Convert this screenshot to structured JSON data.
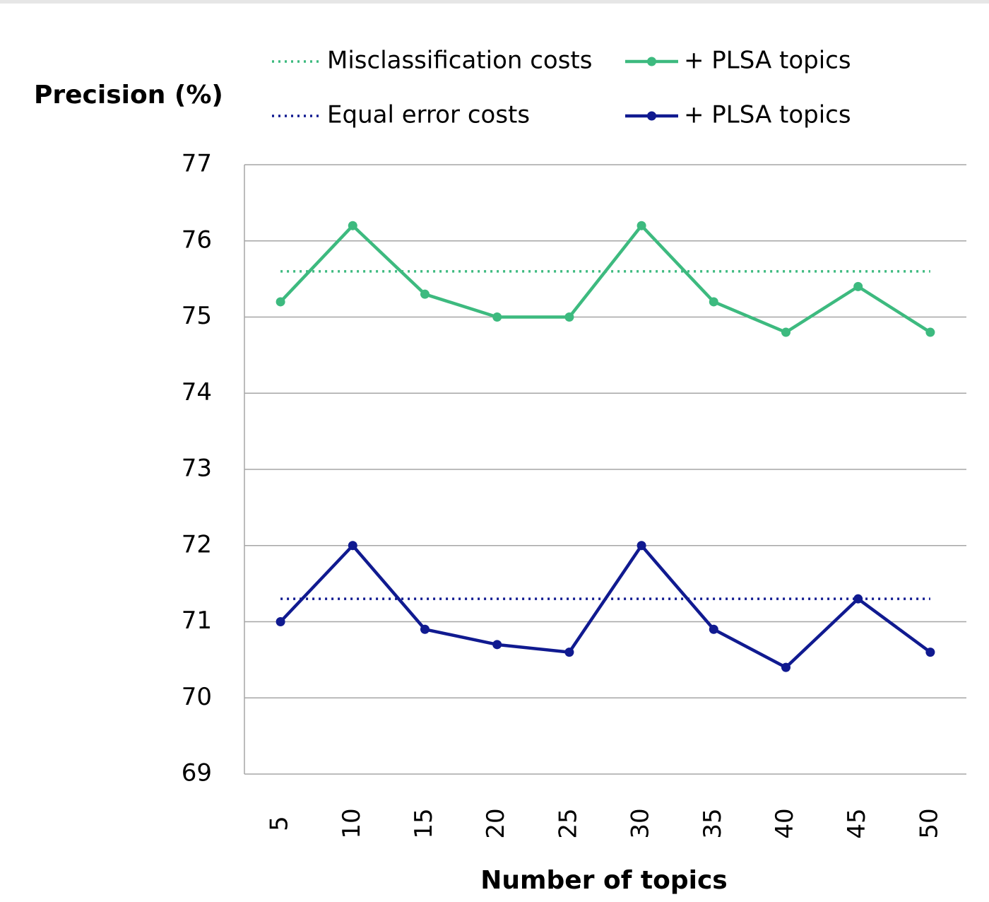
{
  "chart_data": {
    "type": "line",
    "y_label": "Precision (%)",
    "x_label": "Number of topics",
    "categories": [
      "5",
      "10",
      "15",
      "20",
      "25",
      "30",
      "35",
      "40",
      "45",
      "50"
    ],
    "series": [
      {
        "name": "Misclassification costs",
        "color": "#3dba7f",
        "dash": "dotted",
        "marker": false,
        "values": [
          75.6,
          75.6,
          75.6,
          75.6,
          75.6,
          75.6,
          75.6,
          75.6,
          75.6,
          75.6
        ]
      },
      {
        "name": "+ PLSA topics",
        "color": "#3dba7f",
        "dash": "solid",
        "marker": true,
        "values": [
          75.2,
          76.2,
          75.3,
          75.0,
          75.0,
          76.2,
          75.2,
          74.8,
          75.4,
          74.8
        ]
      },
      {
        "name": "Equal error costs",
        "color": "#101a90",
        "dash": "dotted",
        "marker": false,
        "values": [
          71.3,
          71.3,
          71.3,
          71.3,
          71.3,
          71.3,
          71.3,
          71.3,
          71.3,
          71.3
        ]
      },
      {
        "name": "+ PLSA topics",
        "color": "#101a90",
        "dash": "solid",
        "marker": true,
        "values": [
          71.0,
          72.0,
          70.9,
          70.7,
          70.6,
          72.0,
          70.9,
          70.4,
          71.3,
          70.6
        ]
      }
    ],
    "ylim": [
      69,
      77
    ],
    "yticks": [
      69,
      70,
      71,
      72,
      73,
      74,
      75,
      76,
      77
    ],
    "grid": true
  }
}
